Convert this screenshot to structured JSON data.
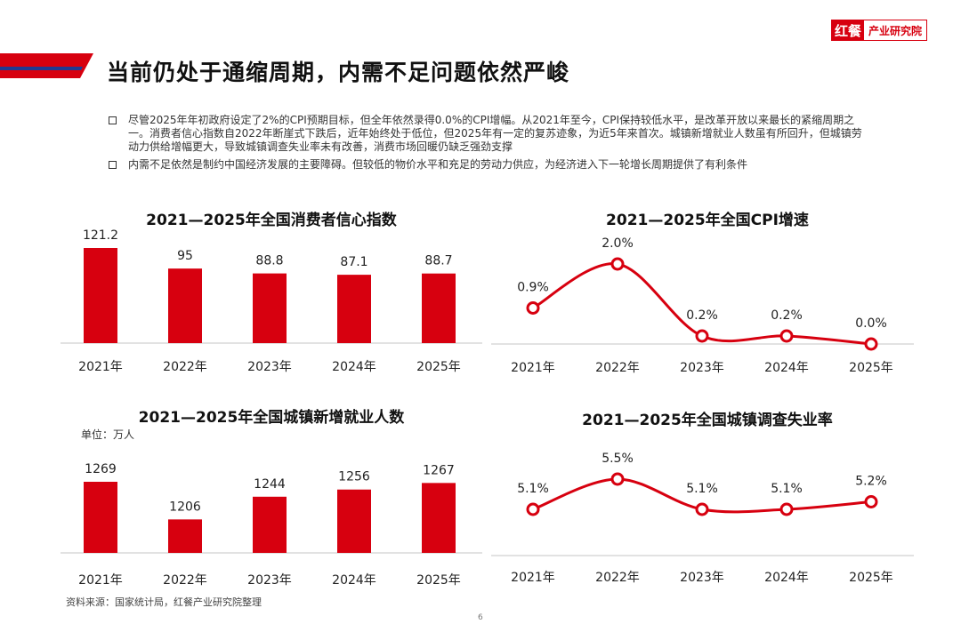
{
  "brand": {
    "mark": "红餐",
    "text": "产业研究院",
    "color": "#d7000f"
  },
  "page_title": "当前仍处于通缩周期，内需不足问题依然严峻",
  "bullets": [
    "尽管2025年年初政府设定了2%的CPI预期目标，但全年依然录得0.0%的CPI增幅。从2021年至今，CPI保持较低水平，是改革开放以来最长的紧缩周期之一。消费者信心指数自2022年断崖式下跌后，近年始终处于低位，但2025年有一定的复苏迹象，为近5年来首次。城镇新增就业人数虽有所回升，但城镇劳动力供给增幅更大，导致城镇调查失业率未有改善，消费市场回暖仍缺乏强劲支撑",
    "内需不足依然是制约中国经济发展的主要障碍。但较低的物价水平和充足的劳动力供应，为经济进入下一轮增长周期提供了有利条件"
  ],
  "colors": {
    "accent": "#d7000f",
    "axis": "#d9d9d9"
  },
  "unit_label": "单位：万人",
  "chart_data": [
    {
      "type": "bar",
      "title": "2021—2025年全国消费者信心指数",
      "categories": [
        "2021年",
        "2022年",
        "2023年",
        "2024年",
        "2025年"
      ],
      "values": [
        121.2,
        95,
        88.8,
        87.1,
        88.7
      ],
      "labels": [
        "121.2",
        "95",
        "88.8",
        "87.1",
        "88.7"
      ],
      "ylim": [
        0,
        121.2
      ]
    },
    {
      "type": "line",
      "title": "2021—2025年全国CPI增速",
      "categories": [
        "2021年",
        "2022年",
        "2023年",
        "2024年",
        "2025年"
      ],
      "values": [
        0.9,
        2.0,
        0.2,
        0.2,
        0.0
      ],
      "labels": [
        "0.9%",
        "2.0%",
        "0.2%",
        "0.2%",
        "0.0%"
      ],
      "ylim": [
        0,
        2.0
      ]
    },
    {
      "type": "bar",
      "title": "2021—2025年全国城镇新增就业人数",
      "categories": [
        "2021年",
        "2022年",
        "2023年",
        "2024年",
        "2025年"
      ],
      "values": [
        1269,
        1206,
        1244,
        1256,
        1267
      ],
      "labels": [
        "1269",
        "1206",
        "1244",
        "1256",
        "1267"
      ],
      "ylim": [
        1150,
        1269
      ]
    },
    {
      "type": "line",
      "title": "2021—2025年全国城镇调查失业率",
      "categories": [
        "2021年",
        "2022年",
        "2023年",
        "2024年",
        "2025年"
      ],
      "values": [
        5.1,
        5.5,
        5.1,
        5.1,
        5.2
      ],
      "labels": [
        "5.1%",
        "5.5%",
        "5.1%",
        "5.1%",
        "5.2%"
      ],
      "ylim": [
        5.1,
        5.5
      ]
    }
  ],
  "source": "资料来源：国家统计局，红餐产业研究院整理",
  "page_number": "6"
}
